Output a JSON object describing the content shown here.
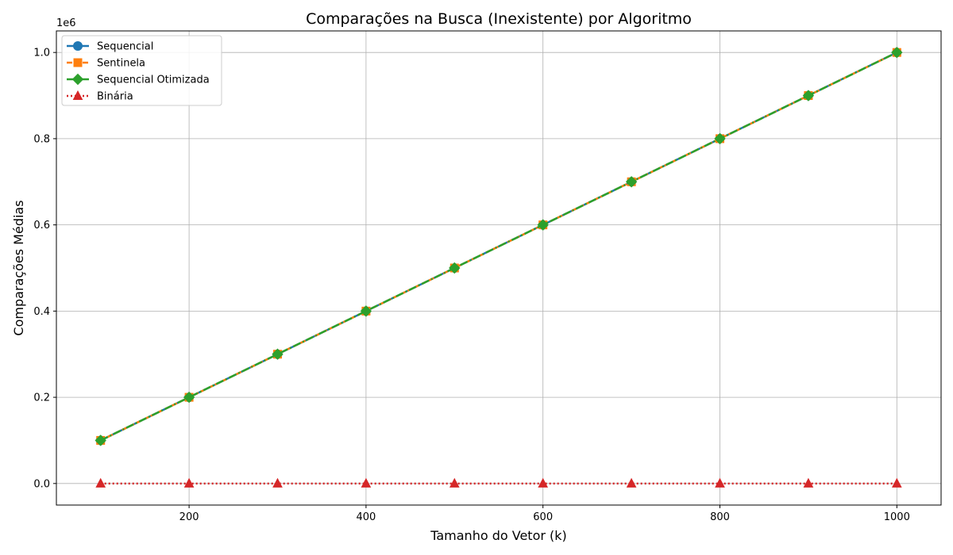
{
  "chart_data": {
    "type": "line",
    "title": "Comparações na Busca (Inexistente) por Algoritmo",
    "xlabel": "Tamanho do Vetor (k)",
    "ylabel": "Comparações Médias",
    "y_scale_note": "1e6",
    "x": [
      100,
      200,
      300,
      400,
      500,
      600,
      700,
      800,
      900,
      1000
    ],
    "xlim": [
      50,
      1050
    ],
    "ylim": [
      -50000,
      1050000
    ],
    "x_ticks": [
      200,
      400,
      600,
      800,
      1000
    ],
    "x_tick_labels": [
      "200",
      "400",
      "600",
      "800",
      "1000"
    ],
    "y_ticks": [
      0,
      200000,
      400000,
      600000,
      800000,
      1000000
    ],
    "y_tick_labels": [
      "0.0",
      "0.2",
      "0.4",
      "0.6",
      "0.8",
      "1.0"
    ],
    "grid": true,
    "legend_position": "top-left",
    "series": [
      {
        "name": "Sequencial",
        "values": [
          100000,
          200000,
          300000,
          400000,
          500000,
          600000,
          700000,
          800000,
          900000,
          1000000
        ],
        "color": "#1f77b4",
        "marker": "circle",
        "line_style": "solid"
      },
      {
        "name": "Sentinela",
        "values": [
          100000,
          200000,
          300000,
          400000,
          500000,
          600000,
          700000,
          800000,
          900000,
          1000000
        ],
        "color": "#ff7f0e",
        "marker": "square",
        "line_style": "dashed"
      },
      {
        "name": "Sequencial Otimizada",
        "values": [
          100000,
          200000,
          300000,
          400000,
          500000,
          600000,
          700000,
          800000,
          900000,
          1000000
        ],
        "color": "#2ca02c",
        "marker": "diamond",
        "line_style": "dashdot"
      },
      {
        "name": "Binária",
        "values": [
          7,
          8,
          9,
          9,
          9,
          10,
          10,
          10,
          10,
          10
        ],
        "color": "#d62728",
        "marker": "triangle",
        "line_style": "dotted"
      }
    ]
  }
}
